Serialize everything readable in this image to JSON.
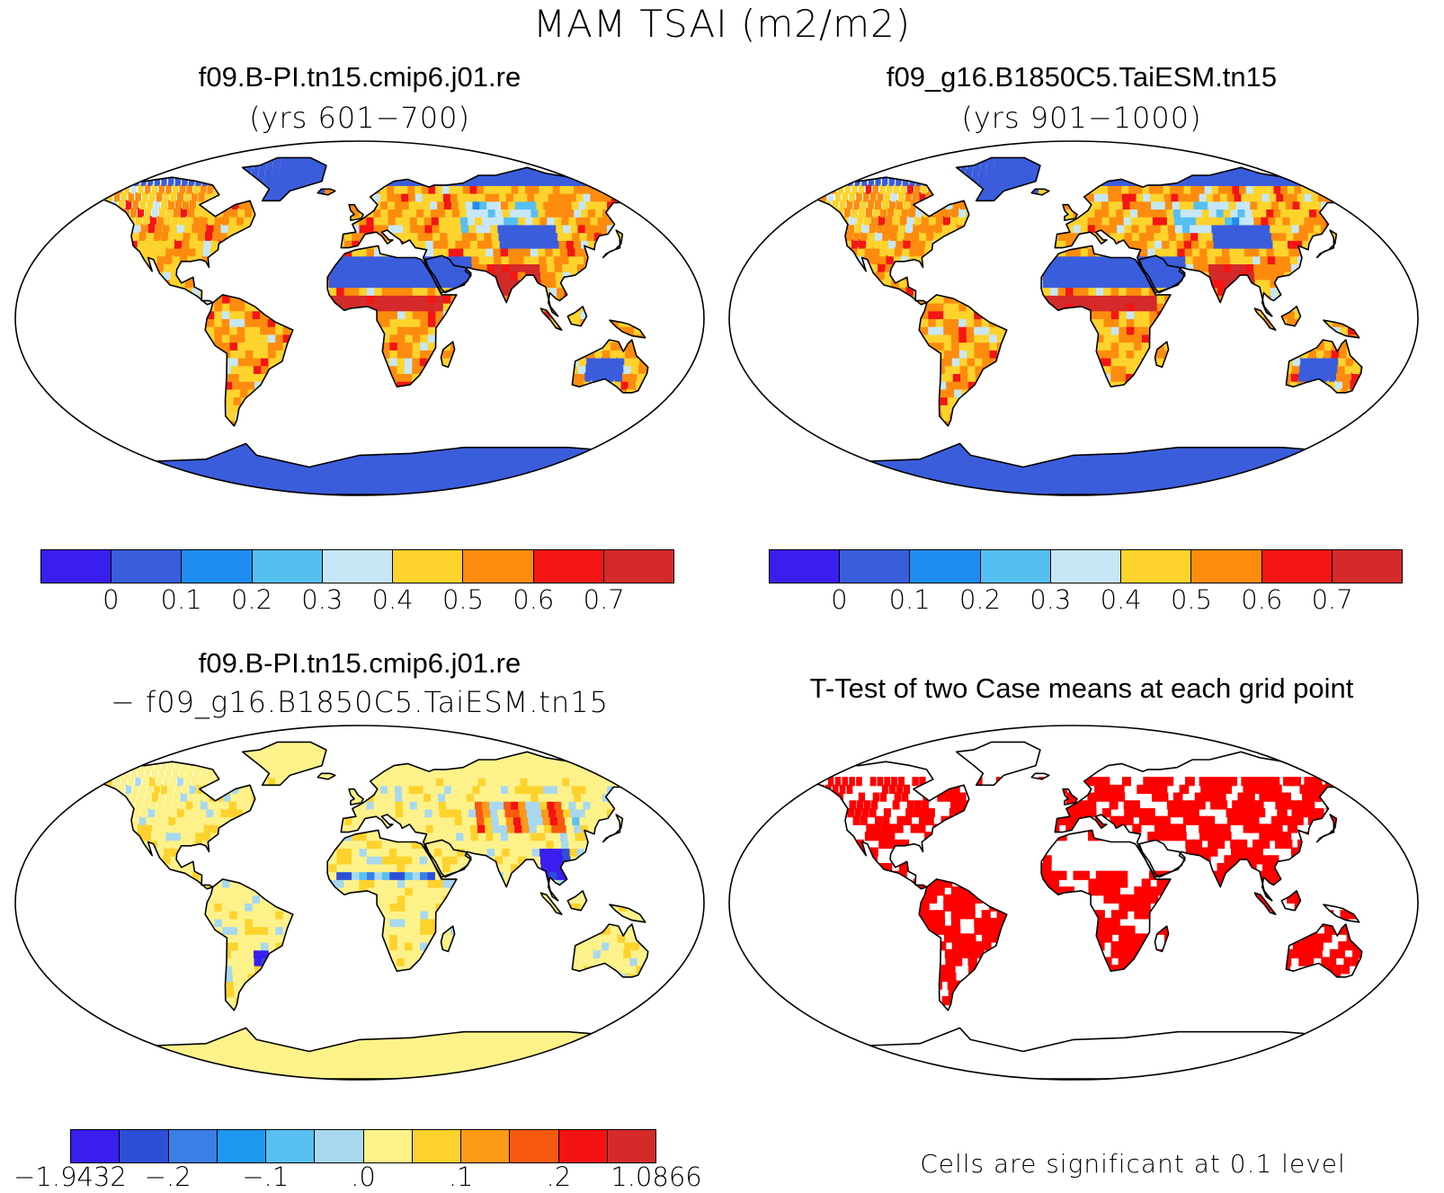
{
  "title": "MAM TSAI (m2/m2)",
  "panels": [
    {
      "id": "panel-case1",
      "title": "f09.B-PI.tn15.cmip6.j01.re",
      "subtitle": "(yrs 601−700)",
      "style": "abs",
      "colorbar": {
        "colors": [
          "#3a1ef0",
          "#3a5ddc",
          "#1f8df0",
          "#56bff2",
          "#c7e7f6",
          "#fdd32c",
          "#fd8c0e",
          "#f41515",
          "#d42a2a"
        ],
        "ticks": [
          "0",
          "0.1",
          "0.2",
          "0.3",
          "0.4",
          "0.5",
          "0.6",
          "0.7"
        ]
      }
    },
    {
      "id": "panel-case2",
      "title": "f09_g16.B1850C5.TaiESM.tn15",
      "subtitle": "(yrs 901−1000)",
      "style": "abs",
      "colorbar": {
        "colors": [
          "#3a1ef0",
          "#3a5ddc",
          "#1f8df0",
          "#56bff2",
          "#c7e7f6",
          "#fdd32c",
          "#fd8c0e",
          "#f41515",
          "#d42a2a"
        ],
        "ticks": [
          "0",
          "0.1",
          "0.2",
          "0.3",
          "0.4",
          "0.5",
          "0.6",
          "0.7"
        ]
      }
    },
    {
      "id": "panel-diff",
      "title": "f09.B-PI.tn15.cmip6.j01.re",
      "subtitle": "− f09_g16.B1850C5.TaiESM.tn15",
      "style": "diff",
      "colorbar": {
        "colors": [
          "#3a1ef0",
          "#2d4fd8",
          "#3a7ee8",
          "#1e97f0",
          "#58c0f0",
          "#a8d8f0",
          "#fdf28a",
          "#fdd22c",
          "#fd9a18",
          "#f85a10",
          "#f41212",
          "#d42a2a"
        ],
        "ticks": [
          "−1.9432",
          "−.2",
          "−.1",
          ".0",
          ".1",
          ".2",
          "1.0866"
        ]
      }
    },
    {
      "id": "panel-ttest",
      "title": "T-Test of two Case means at each grid point",
      "style": "sig",
      "note": "Cells are significant at 0.1 level"
    }
  ],
  "colors": {
    "ocean": "#ffffff",
    "coast": "#000000",
    "significant": "#ff0000",
    "antarctica_abs": "#3a5ddc",
    "antarctica_diff": "#fdf28a"
  }
}
